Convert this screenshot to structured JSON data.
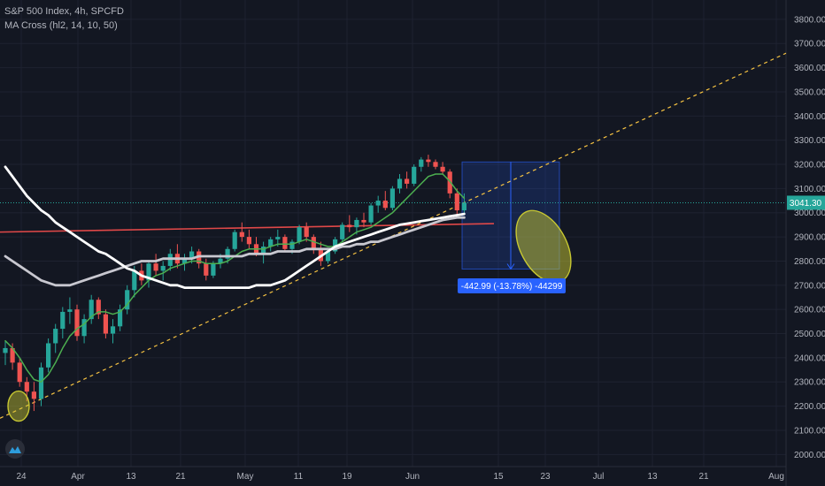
{
  "header": {
    "symbol": "S&P 500 Index, 4h, SPCFD",
    "indicator": "MA Cross (hl2, 14, 10, 50)"
  },
  "price_badge": "3041.30",
  "measure_label": "-442.99 (-13.78%) -44299",
  "colors": {
    "background": "#131722",
    "grid": "#1e2230",
    "up": "#26a69a",
    "down": "#ef5350",
    "ma_short": "#4caf50",
    "ma_mid": "#c8c8d0",
    "ma_long": "#ffffff",
    "resistance": "#e04848",
    "trendline": "#f5c242",
    "measure": "#2962ff",
    "highlight": "#c8c832"
  },
  "icons": {
    "logo": "tradingview-logo-icon"
  },
  "chart_data": {
    "type": "candlestick",
    "title": "S&P 500 Index, 4h, SPCFD",
    "ylim": [
      1950,
      3880
    ],
    "y_ticks": [
      2000,
      2100,
      2200,
      2300,
      2400,
      2500,
      2600,
      2700,
      2800,
      2900,
      3000,
      3100,
      3200,
      3300,
      3400,
      3500,
      3600,
      3700,
      3800
    ],
    "x_ticks": [
      "24",
      "Apr",
      "13",
      "21",
      "May",
      "11",
      "19",
      "Jun",
      "15",
      "23",
      "Jul",
      "13",
      "21",
      "Aug"
    ],
    "grid": true,
    "price_line": 3041.3,
    "candles": [
      [
        2420,
        2470,
        2370,
        2440
      ],
      [
        2440,
        2460,
        2350,
        2380
      ],
      [
        2380,
        2400,
        2280,
        2300
      ],
      [
        2300,
        2320,
        2220,
        2260
      ],
      [
        2260,
        2300,
        2180,
        2230
      ],
      [
        2230,
        2380,
        2200,
        2360
      ],
      [
        2360,
        2480,
        2340,
        2460
      ],
      [
        2460,
        2540,
        2420,
        2520
      ],
      [
        2520,
        2610,
        2480,
        2590
      ],
      [
        2590,
        2650,
        2540,
        2600
      ],
      [
        2600,
        2620,
        2470,
        2490
      ],
      [
        2490,
        2580,
        2460,
        2560
      ],
      [
        2560,
        2660,
        2540,
        2640
      ],
      [
        2640,
        2650,
        2560,
        2580
      ],
      [
        2580,
        2600,
        2480,
        2500
      ],
      [
        2500,
        2560,
        2460,
        2530
      ],
      [
        2530,
        2620,
        2510,
        2600
      ],
      [
        2600,
        2700,
        2580,
        2680
      ],
      [
        2680,
        2780,
        2650,
        2760
      ],
      [
        2760,
        2790,
        2700,
        2720
      ],
      [
        2720,
        2800,
        2690,
        2790
      ],
      [
        2790,
        2830,
        2740,
        2760
      ],
      [
        2760,
        2800,
        2720,
        2780
      ],
      [
        2780,
        2850,
        2760,
        2830
      ],
      [
        2830,
        2870,
        2770,
        2790
      ],
      [
        2790,
        2830,
        2760,
        2810
      ],
      [
        2810,
        2860,
        2790,
        2840
      ],
      [
        2840,
        2850,
        2770,
        2790
      ],
      [
        2790,
        2810,
        2720,
        2740
      ],
      [
        2740,
        2800,
        2730,
        2790
      ],
      [
        2790,
        2830,
        2770,
        2810
      ],
      [
        2810,
        2860,
        2790,
        2850
      ],
      [
        2850,
        2930,
        2840,
        2920
      ],
      [
        2920,
        2960,
        2880,
        2900
      ],
      [
        2900,
        2930,
        2850,
        2870
      ],
      [
        2870,
        2900,
        2820,
        2830
      ],
      [
        2830,
        2880,
        2790,
        2860
      ],
      [
        2860,
        2900,
        2840,
        2890
      ],
      [
        2890,
        2930,
        2860,
        2900
      ],
      [
        2900,
        2910,
        2840,
        2850
      ],
      [
        2850,
        2890,
        2830,
        2880
      ],
      [
        2880,
        2950,
        2870,
        2940
      ],
      [
        2940,
        2960,
        2880,
        2900
      ],
      [
        2900,
        2910,
        2830,
        2850
      ],
      [
        2850,
        2880,
        2780,
        2800
      ],
      [
        2800,
        2850,
        2790,
        2840
      ],
      [
        2840,
        2900,
        2830,
        2890
      ],
      [
        2890,
        2960,
        2880,
        2950
      ],
      [
        2950,
        2990,
        2920,
        2940
      ],
      [
        2940,
        2980,
        2910,
        2970
      ],
      [
        2970,
        3000,
        2940,
        2960
      ],
      [
        2960,
        3040,
        2950,
        3030
      ],
      [
        3030,
        3070,
        3000,
        3050
      ],
      [
        3050,
        3090,
        3010,
        3020
      ],
      [
        3020,
        3110,
        3010,
        3100
      ],
      [
        3100,
        3160,
        3080,
        3140
      ],
      [
        3140,
        3170,
        3100,
        3120
      ],
      [
        3120,
        3200,
        3110,
        3190
      ],
      [
        3190,
        3230,
        3170,
        3220
      ],
      [
        3220,
        3240,
        3190,
        3210
      ],
      [
        3210,
        3220,
        3180,
        3190
      ],
      [
        3190,
        3210,
        3160,
        3170
      ],
      [
        3170,
        3180,
        3060,
        3080
      ],
      [
        3080,
        3100,
        2990,
        3010
      ],
      [
        3010,
        3080,
        2990,
        3041
      ]
    ],
    "series": [
      {
        "values": [
          2470,
          2440,
          2400,
          2350,
          2310,
          2300,
          2330,
          2380,
          2440,
          2490,
          2520,
          2540,
          2570,
          2590,
          2590,
          2580,
          2590,
          2620,
          2660,
          2690,
          2720,
          2740,
          2750,
          2770,
          2780,
          2790,
          2800,
          2800,
          2790,
          2790,
          2790,
          2800,
          2820,
          2840,
          2850,
          2850,
          2850,
          2860,
          2870,
          2870,
          2870,
          2880,
          2890,
          2880,
          2870,
          2860,
          2860,
          2880,
          2900,
          2920,
          2930,
          2940,
          2960,
          2980,
          3000,
          3030,
          3060,
          3090,
          3120,
          3150,
          3160,
          3160,
          3130,
          3090,
          3060
        ]
      },
      {
        "values": [
          2820,
          2800,
          2780,
          2760,
          2740,
          2720,
          2710,
          2700,
          2700,
          2700,
          2710,
          2720,
          2730,
          2740,
          2750,
          2760,
          2770,
          2780,
          2790,
          2800,
          2800,
          2800,
          2810,
          2810,
          2810,
          2810,
          2810,
          2820,
          2820,
          2820,
          2820,
          2820,
          2820,
          2820,
          2830,
          2830,
          2830,
          2830,
          2840,
          2840,
          2840,
          2840,
          2850,
          2850,
          2850,
          2850,
          2850,
          2860,
          2860,
          2870,
          2870,
          2880,
          2880,
          2890,
          2900,
          2910,
          2920,
          2930,
          2940,
          2950,
          2960,
          2970,
          2975,
          2980,
          2980
        ]
      },
      {
        "values": [
          3190,
          3150,
          3110,
          3070,
          3040,
          3010,
          2990,
          2960,
          2940,
          2920,
          2900,
          2880,
          2860,
          2840,
          2830,
          2810,
          2790,
          2770,
          2760,
          2740,
          2730,
          2720,
          2710,
          2700,
          2700,
          2690,
          2690,
          2690,
          2690,
          2690,
          2690,
          2690,
          2690,
          2690,
          2690,
          2700,
          2700,
          2700,
          2710,
          2720,
          2740,
          2760,
          2780,
          2800,
          2820,
          2840,
          2860,
          2870,
          2880,
          2890,
          2900,
          2910,
          2920,
          2930,
          2940,
          2950,
          2955,
          2960,
          2965,
          2970,
          2975,
          2980,
          2985,
          2990,
          2995
        ]
      }
    ],
    "annotations": {
      "resistance": [
        2920,
        2955
      ],
      "trendline": [
        2150,
        3660
      ],
      "measure": {
        "from": 3210,
        "to": 2767,
        "label": "-442.99 (-13.78%) -44299"
      }
    }
  }
}
